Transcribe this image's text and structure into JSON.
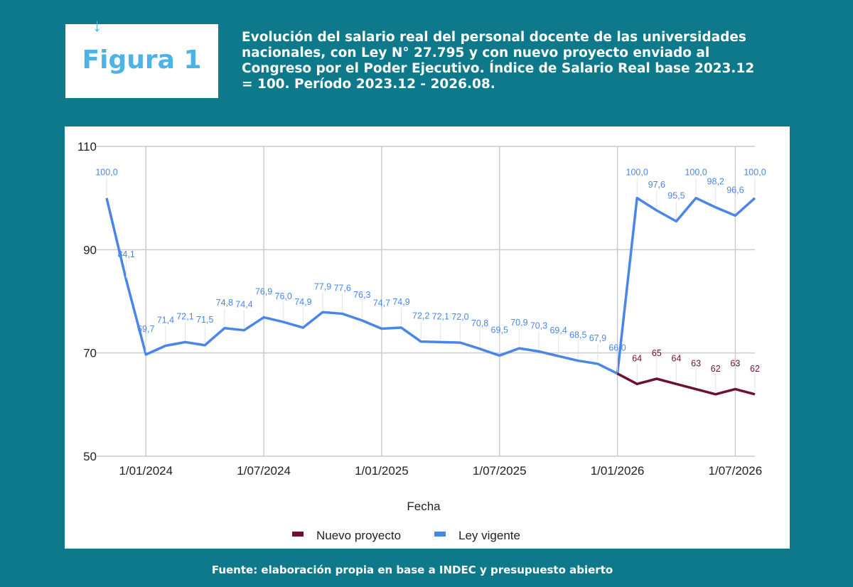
{
  "header": {
    "figure_label": "Figura 1",
    "title": "Evolución del salario real del personal docente de las universidades nacionales, con Ley  N° 27.795 y con nuevo proyecto enviado al Congreso por el Poder Ejecutivo. Índice de Salario Real base 2023.12 = 100. Período 2023.12 - 2026.08."
  },
  "footer": "Fuente: elaboración propia en base a INDEC y presupuesto abierto",
  "colors": {
    "background": "#0e798b",
    "ley_vigente": "#4a86e8",
    "nuevo_proyecto": "#6b1137",
    "figure_label": "#4db3e6"
  },
  "chart_data": {
    "type": "line",
    "xlabel": "Fecha",
    "ylabel": "",
    "ylim": [
      50,
      110
    ],
    "yticks": [
      50,
      70,
      90,
      110
    ],
    "grid": true,
    "legend_position": "bottom",
    "x_start": "2023-11",
    "x_ticks": [
      {
        "index": 2,
        "label": "1/01/2024"
      },
      {
        "index": 8,
        "label": "1/07/2024"
      },
      {
        "index": 14,
        "label": "1/01/2025"
      },
      {
        "index": 20,
        "label": "1/07/2025"
      },
      {
        "index": 26,
        "label": "1/01/2026"
      },
      {
        "index": 32,
        "label": "1/07/2026"
      }
    ],
    "series": [
      {
        "name": "Nuevo proyecto",
        "color": "#6b1137",
        "start_index": 26,
        "values": [
          66.0,
          64,
          65,
          64,
          63,
          62,
          63,
          62
        ],
        "labels": [
          "",
          "64",
          "65",
          "64",
          "63",
          "62",
          "63",
          "62"
        ]
      },
      {
        "name": "Ley vigente",
        "color": "#4a86e8",
        "start_index": 0,
        "values": [
          100.0,
          84.1,
          69.7,
          71.4,
          72.1,
          71.5,
          74.8,
          74.4,
          76.9,
          76.0,
          74.9,
          77.9,
          77.6,
          76.3,
          74.7,
          74.9,
          72.2,
          72.1,
          72.0,
          70.8,
          69.5,
          70.9,
          70.3,
          69.4,
          68.5,
          67.9,
          66.0,
          100.0,
          97.6,
          95.5,
          100.0,
          98.2,
          96.6,
          100.0
        ],
        "labels": [
          "100,0",
          "84,1",
          "69,7",
          "71,4",
          "72,1",
          "71,5",
          "74,8",
          "74,4",
          "76,9",
          "76,0",
          "74,9",
          "77,9",
          "77,6",
          "76,3",
          "74,7",
          "74,9",
          "72,2",
          "72,1",
          "72,0",
          "70,8",
          "69,5",
          "70,9",
          "70,3",
          "69,4",
          "68,5",
          "67,9",
          "66,0",
          "100,0",
          "97,6",
          "95,5",
          "100,0",
          "98,2",
          "96,6",
          "100,0"
        ]
      }
    ]
  }
}
